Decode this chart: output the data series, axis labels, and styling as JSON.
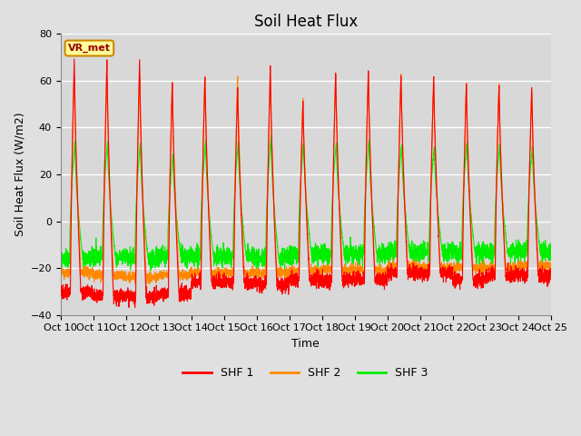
{
  "title": "Soil Heat Flux",
  "ylabel": "Soil Heat Flux (W/m2)",
  "xlabel": "Time",
  "ylim": [
    -40,
    80
  ],
  "yticks": [
    -40,
    -20,
    0,
    20,
    40,
    60,
    80
  ],
  "bg_color": "#e0e0e0",
  "plot_bg_color": "#d8d8d8",
  "grid_color": "#ffffff",
  "legend_labels": [
    "SHF 1",
    "SHF 2",
    "SHF 3"
  ],
  "line_colors": [
    "#ff0000",
    "#ff8800",
    "#00ee00"
  ],
  "label_box_text": "VR_met",
  "label_box_facecolor": "#ffff99",
  "label_box_edgecolor": "#cc8800",
  "n_days": 15,
  "ppd": 288,
  "shf1_peak": [
    70,
    70,
    70,
    60,
    63,
    58,
    67,
    52,
    65,
    65,
    64,
    63,
    60,
    59,
    58
  ],
  "shf2_peak": [
    64,
    63,
    63,
    60,
    63,
    63,
    63,
    53,
    63,
    64,
    63,
    60,
    60,
    60,
    57
  ],
  "shf3_peak": [
    34,
    34,
    34,
    29,
    34,
    34,
    36,
    34,
    34,
    35,
    33,
    32,
    34,
    33,
    32
  ],
  "shf1_night": [
    -30,
    -32,
    -32,
    -31,
    -26,
    -26,
    -27,
    -25,
    -25,
    -25,
    -22,
    -22,
    -25,
    -23,
    -23
  ],
  "shf2_night": [
    -22,
    -23,
    -24,
    -23,
    -22,
    -22,
    -22,
    -21,
    -21,
    -21,
    -19,
    -20,
    -20,
    -20,
    -19
  ],
  "shf3_night": [
    -16,
    -15,
    -16,
    -15,
    -15,
    -15,
    -16,
    -14,
    -14,
    -14,
    -13,
    -13,
    -13,
    -13,
    -13
  ],
  "x_tick_labels": [
    "Oct 10",
    "Oct 11",
    "Oct 12",
    "Oct 13",
    "Oct 14",
    "Oct 15",
    "Oct 16",
    "Oct 17",
    "Oct 18",
    "Oct 19",
    "Oct 20",
    "Oct 21",
    "Oct 22",
    "Oct 23",
    "Oct 24",
    "Oct 25"
  ],
  "title_fontsize": 12,
  "axis_fontsize": 9,
  "tick_fontsize": 8,
  "linewidth": 0.8
}
